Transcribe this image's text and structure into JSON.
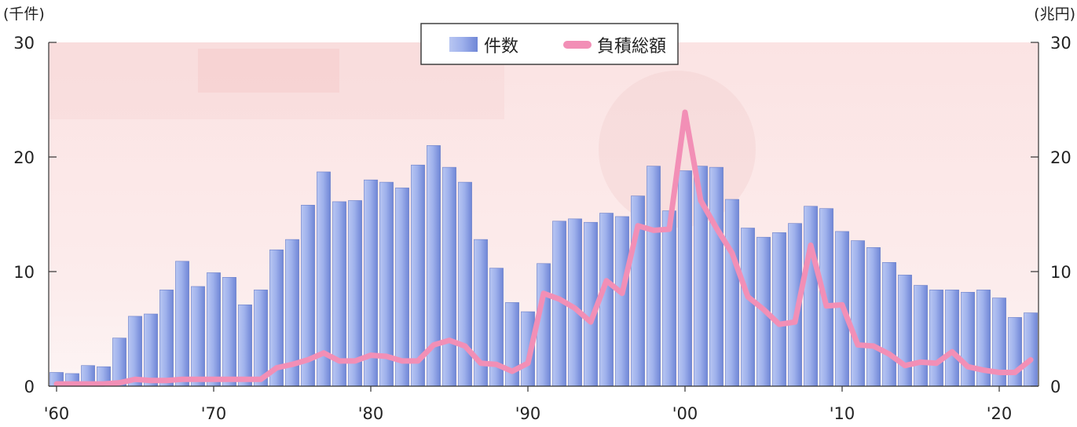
{
  "chart_data": {
    "type": "bar",
    "left_axis_unit": "(千件)",
    "right_axis_unit": "(兆円)",
    "legend": {
      "bar_label": "件数",
      "line_label": "負積総額",
      "placement": "top-center"
    },
    "ylim_left": [
      0,
      30
    ],
    "ylim_right": [
      0,
      30
    ],
    "yticks_left": [
      "0",
      "10",
      "20",
      "30"
    ],
    "yticks_right": [
      "0",
      "10",
      "20",
      "30"
    ],
    "xticks": [
      {
        "year": 1960,
        "label": "'60"
      },
      {
        "year": 1970,
        "label": "'70"
      },
      {
        "year": 1980,
        "label": "'80"
      },
      {
        "year": 1990,
        "label": "'90"
      },
      {
        "year": 2000,
        "label": "'00"
      },
      {
        "year": 2010,
        "label": "'10"
      },
      {
        "year": 2020,
        "label": "'20"
      }
    ],
    "years": [
      1960,
      1961,
      1962,
      1963,
      1964,
      1965,
      1966,
      1967,
      1968,
      1969,
      1970,
      1971,
      1972,
      1973,
      1974,
      1975,
      1976,
      1977,
      1978,
      1979,
      1980,
      1981,
      1982,
      1983,
      1984,
      1985,
      1986,
      1987,
      1988,
      1989,
      1990,
      1991,
      1992,
      1993,
      1994,
      1995,
      1996,
      1997,
      1998,
      1999,
      2000,
      2001,
      2002,
      2003,
      2004,
      2005,
      2006,
      2007,
      2008,
      2009,
      2010,
      2011,
      2012,
      2013,
      2014,
      2015,
      2016,
      2017,
      2018,
      2019,
      2020,
      2021,
      2022
    ],
    "series": [
      {
        "name": "件数",
        "type": "bar",
        "color": "#8fa3e6",
        "values": [
          1.2,
          1.1,
          1.8,
          1.7,
          4.2,
          6.1,
          6.3,
          8.4,
          10.9,
          8.7,
          9.9,
          9.5,
          7.1,
          8.4,
          11.9,
          12.8,
          15.8,
          18.7,
          16.1,
          16.2,
          18.0,
          17.8,
          17.3,
          19.3,
          21.0,
          19.1,
          17.8,
          12.8,
          10.3,
          7.3,
          6.5,
          10.7,
          14.4,
          14.6,
          14.3,
          15.1,
          14.8,
          16.6,
          19.2,
          15.3,
          18.8,
          19.2,
          19.1,
          16.3,
          13.8,
          13.0,
          13.4,
          14.2,
          15.7,
          15.5,
          13.5,
          12.7,
          12.1,
          10.8,
          9.7,
          8.8,
          8.4,
          8.4,
          8.2,
          8.4,
          7.7,
          6.0,
          6.4
        ]
      },
      {
        "name": "負積総額",
        "type": "line",
        "color": "#f28fb6",
        "values": [
          0.2,
          0.2,
          0.2,
          0.2,
          0.3,
          0.6,
          0.5,
          0.5,
          0.6,
          0.6,
          0.6,
          0.6,
          0.6,
          0.6,
          1.6,
          1.9,
          2.3,
          2.9,
          2.2,
          2.2,
          2.7,
          2.6,
          2.2,
          2.2,
          3.6,
          4.0,
          3.5,
          2.0,
          1.9,
          1.3,
          2.0,
          8.1,
          7.6,
          6.8,
          5.6,
          9.2,
          8.1,
          14.0,
          13.6,
          13.7,
          23.9,
          16.2,
          13.8,
          11.6,
          7.8,
          6.7,
          5.4,
          5.6,
          12.3,
          7.0,
          7.1,
          3.6,
          3.5,
          2.8,
          1.8,
          2.1,
          2.0,
          3.0,
          1.7,
          1.4,
          1.2,
          1.2,
          2.3
        ]
      }
    ]
  }
}
